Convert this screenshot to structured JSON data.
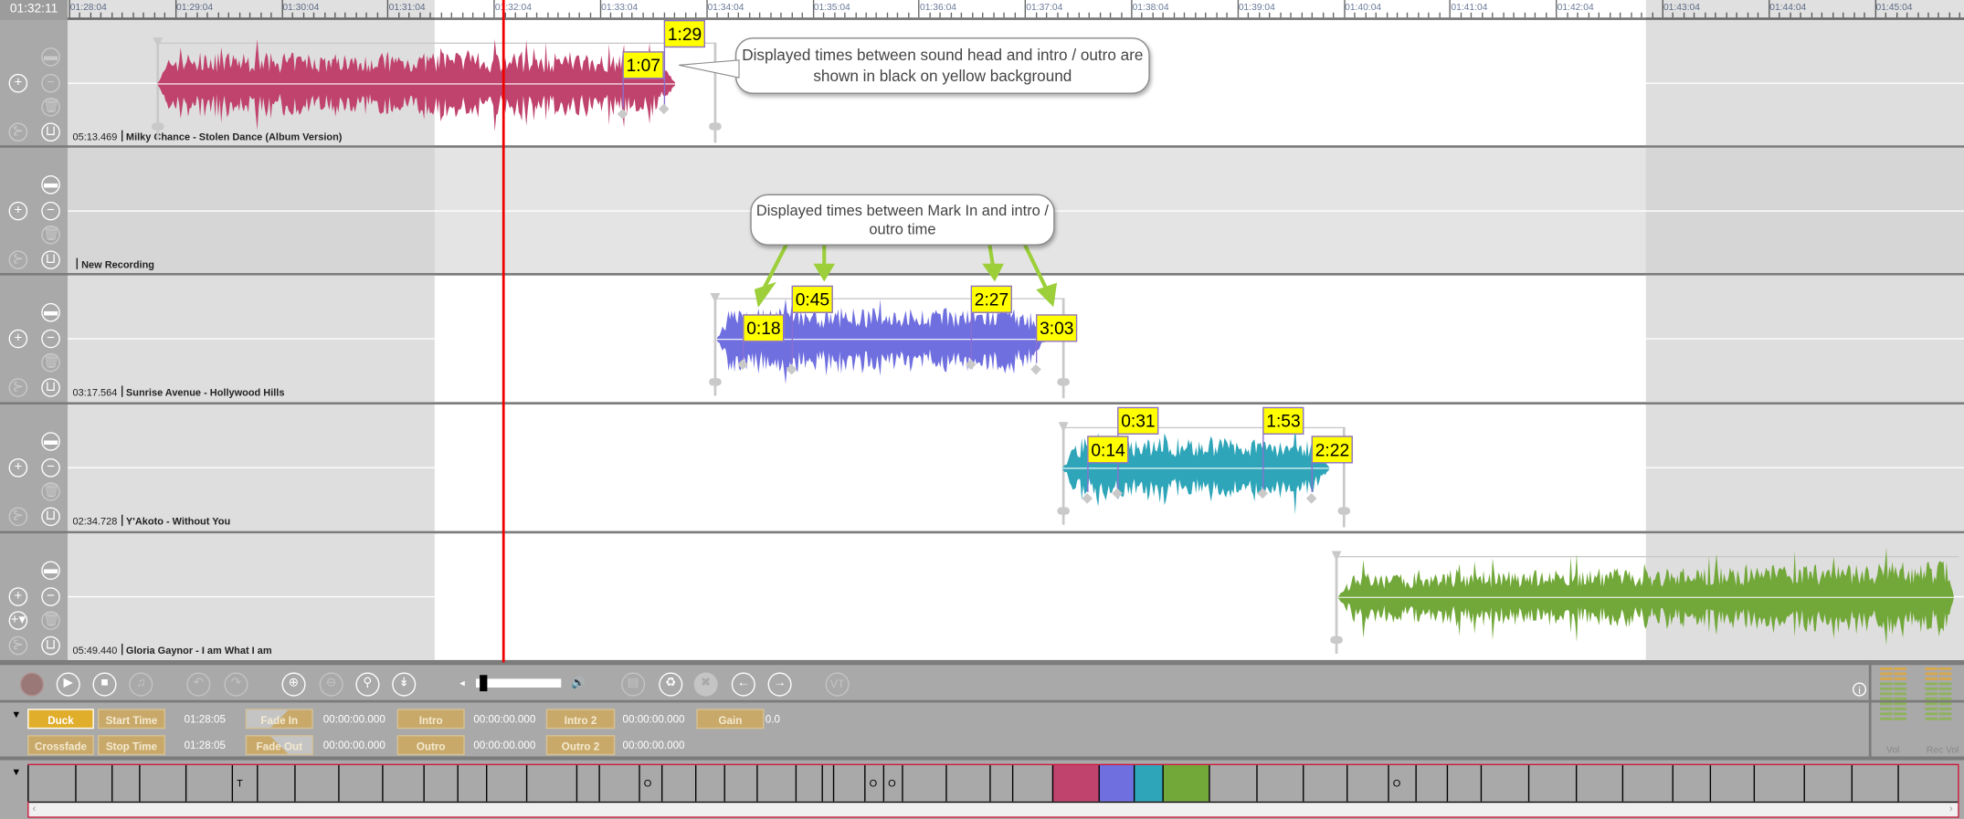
{
  "ruler": {
    "current_time": "01:32:11",
    "labels": [
      "01:28:04",
      "01:29:04",
      "01:30:04",
      "01:31:04",
      "01:32:04",
      "01:33:04",
      "01:34:04",
      "01:35:04",
      "01:36:04",
      "01:37:04",
      "01:38:04",
      "01:39:04",
      "01:40:04",
      "01:41:04",
      "01:42:04",
      "01:43:04",
      "01:44:04",
      "01:45:04"
    ]
  },
  "tracks": [
    {
      "duration": "05:13.469",
      "title": "Milky Chance - Stolen Dance (Album Version)",
      "color": "#c0436d",
      "markers": [
        "1:29",
        "1:07"
      ]
    },
    {
      "duration": "",
      "title": "New Recording",
      "color": "",
      "markers": []
    },
    {
      "duration": "03:17.564",
      "title": "Sunrise Avenue - Hollywood Hills",
      "color": "#6f6fe0",
      "markers": [
        "0:18",
        "0:45",
        "2:27",
        "3:03"
      ]
    },
    {
      "duration": "02:34.728",
      "title": "Y'Akoto - Without You",
      "color": "#2ea5b8",
      "markers": [
        "0:31",
        "0:14",
        "1:53",
        "2:22"
      ]
    },
    {
      "duration": "05:49.440",
      "title": "Gloria Gaynor - I am What I am",
      "color": "#72a83a",
      "markers": []
    }
  ],
  "callouts": {
    "sound_head": "Displayed times between sound head and intro / outro are shown in black on yellow background",
    "mark_in": "Displayed times between Mark In and intro / outro time"
  },
  "toolbar": {
    "icons": [
      "record-icon",
      "play-icon",
      "stop-icon",
      "add-music-icon",
      "undo-icon",
      "redo-icon",
      "zoom-in-icon",
      "zoom-out-icon",
      "zoom-fit-icon",
      "scroll-down-icon",
      "save-icon",
      "recycle-icon",
      "cancel-icon",
      "arrow-left-icon",
      "arrow-right-icon"
    ],
    "vt_label": "VT",
    "volume_level": 0.05
  },
  "properties": {
    "duck": "Duck",
    "crossfade": "Crossfade",
    "start_time": "Start Time",
    "start_time_value": "01:28:05",
    "stop_time": "Stop Time",
    "stop_time_value": "01:28:05",
    "fade_in": "Fade In",
    "fade_in_value": "00:00:00.000",
    "fade_out": "Fade Out",
    "fade_out_value": "00:00:00.000",
    "intro": "Intro",
    "intro_value": "00:00:00.000",
    "outro": "Outro",
    "outro_value": "00:00:00.000",
    "intro2": "Intro 2",
    "intro2_value": "00:00:00.000",
    "outro2": "Outro 2",
    "outro2_value": "00:00:00.000",
    "gain": "Gain",
    "gain_value": "0.0"
  },
  "meters": {
    "vol": "Vol",
    "rec_vol": "Rec Vol"
  },
  "strip": {
    "cells": [
      {
        "t": ""
      },
      {
        "t": ""
      },
      {
        "t": ""
      },
      {
        "t": ""
      },
      {
        "t": ""
      },
      {
        "t": "T"
      },
      {
        "t": ""
      },
      {
        "t": ""
      },
      {
        "t": ""
      },
      {
        "t": ""
      },
      {
        "t": ""
      },
      {
        "t": ""
      },
      {
        "t": ""
      },
      {
        "t": ""
      },
      {
        "t": ""
      },
      {
        "t": ""
      },
      {
        "t": "O"
      },
      {
        "t": ""
      },
      {
        "t": ""
      },
      {
        "t": ""
      },
      {
        "t": ""
      },
      {
        "t": ""
      },
      {
        "t": ""
      },
      {
        "t": ""
      },
      {
        "t": "O"
      },
      {
        "t": "O"
      },
      {
        "t": ""
      },
      {
        "t": ""
      },
      {
        "t": ""
      },
      {
        "t": ""
      },
      {
        "t": "",
        "c": "#c0436d"
      },
      {
        "t": "",
        "c": "#6f6fe0"
      },
      {
        "t": "",
        "c": "#2ea5b8"
      },
      {
        "t": "",
        "c": "#72a83a"
      },
      {
        "t": ""
      },
      {
        "t": ""
      },
      {
        "t": ""
      },
      {
        "t": ""
      },
      {
        "t": "O"
      },
      {
        "t": ""
      },
      {
        "t": ""
      },
      {
        "t": ""
      },
      {
        "t": ""
      },
      {
        "t": ""
      },
      {
        "t": ""
      },
      {
        "t": ""
      },
      {
        "t": ""
      },
      {
        "t": ""
      },
      {
        "t": ""
      },
      {
        "t": ""
      },
      {
        "t": ""
      }
    ]
  }
}
